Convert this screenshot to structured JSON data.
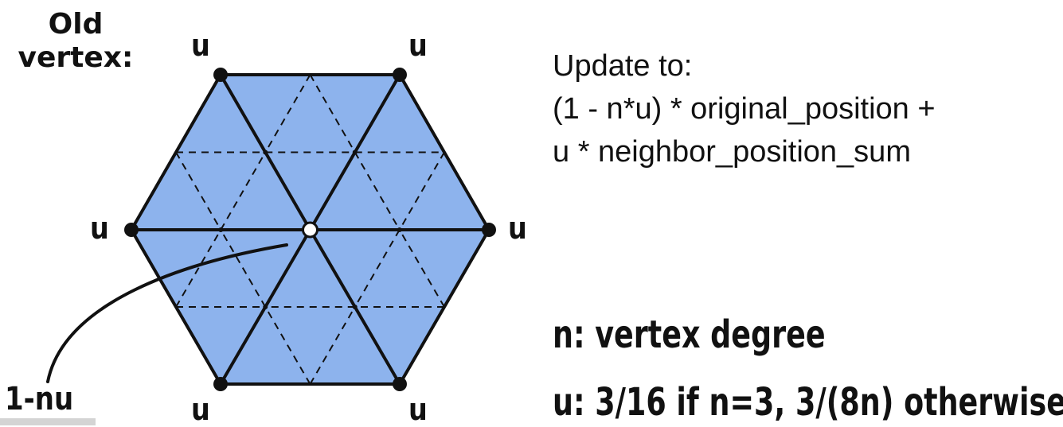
{
  "header": {
    "old_vertex_line1": "Old",
    "old_vertex_line2": "vertex:"
  },
  "vertex_labels": {
    "top_left": "u",
    "top_right": "u",
    "left": "u",
    "right": "u",
    "bottom_left": "u",
    "bottom_right": "u"
  },
  "center_label": "1-nu",
  "formula": {
    "line1": "Update to:",
    "line2": "(1 - n*u) * original_position +",
    "line3": "u * neighbor_position_sum"
  },
  "definitions": {
    "n": "n: vertex degree",
    "u": "u: 3/16 if n=3, 3/(8n) otherwise"
  },
  "colors": {
    "fill": "#8db3ed",
    "edge": "#111111",
    "center_vertex": "#ffffff"
  }
}
